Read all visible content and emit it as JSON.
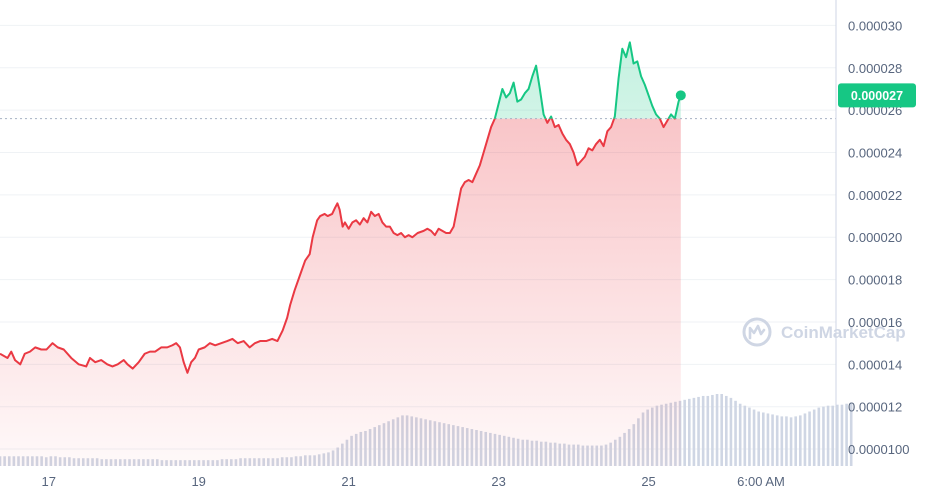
{
  "watermark": {
    "text": "CoinMarketCap",
    "icon": "coinmarketcap-logo-icon"
  },
  "current_price_label": "0.000027",
  "colors": {
    "up": "#16c784",
    "down": "#ea3943",
    "grid": "#eff2f5",
    "axis": "#cfd6e4",
    "text": "#58667e",
    "volume": "#cfd6e4"
  },
  "chart_data": {
    "type": "area",
    "title": "",
    "xlabel": "",
    "ylabel": "",
    "y_axis_position": "right",
    "ylim": [
      9.2e-06,
      3.12e-05
    ],
    "y_ticks": [
      "0.000030",
      "0.000028",
      "0.000026",
      "0.000024",
      "0.000022",
      "0.000020",
      "0.000018",
      "0.000016",
      "0.000014",
      "0.000012",
      "0.0000100"
    ],
    "y_tick_values": [
      3e-05,
      2.8e-05,
      2.6e-05,
      2.4e-05,
      2.2e-05,
      2e-05,
      1.8e-05,
      1.6e-05,
      1.4e-05,
      1.2e-05,
      1e-05
    ],
    "x_ticks": [
      "17",
      "19",
      "21",
      "23",
      "25",
      "6:00 AM"
    ],
    "x_tick_values": [
      17,
      19,
      21,
      23,
      25,
      26.5
    ],
    "x_range": [
      16.35,
      27.5
    ],
    "baseline_value": 2.56e-05,
    "grid": true,
    "series": [
      {
        "values": [
          [
            16.35,
            1.45e-05
          ],
          [
            16.45,
            1.43e-05
          ],
          [
            16.5,
            1.46e-05
          ],
          [
            16.55,
            1.42e-05
          ],
          [
            16.62,
            1.4e-05
          ],
          [
            16.68,
            1.45e-05
          ],
          [
            16.75,
            1.46e-05
          ],
          [
            16.82,
            1.48e-05
          ],
          [
            16.9,
            1.47e-05
          ],
          [
            16.97,
            1.47e-05
          ],
          [
            17.05,
            1.5e-05
          ],
          [
            17.12,
            1.48e-05
          ],
          [
            17.2,
            1.47e-05
          ],
          [
            17.3,
            1.43e-05
          ],
          [
            17.4,
            1.4e-05
          ],
          [
            17.5,
            1.39e-05
          ],
          [
            17.55,
            1.43e-05
          ],
          [
            17.62,
            1.41e-05
          ],
          [
            17.7,
            1.42e-05
          ],
          [
            17.78,
            1.4e-05
          ],
          [
            17.85,
            1.39e-05
          ],
          [
            17.92,
            1.4e-05
          ],
          [
            18.0,
            1.42e-05
          ],
          [
            18.05,
            1.4e-05
          ],
          [
            18.12,
            1.38e-05
          ],
          [
            18.2,
            1.41e-05
          ],
          [
            18.28,
            1.45e-05
          ],
          [
            18.35,
            1.46e-05
          ],
          [
            18.42,
            1.46e-05
          ],
          [
            18.5,
            1.48e-05
          ],
          [
            18.58,
            1.48e-05
          ],
          [
            18.65,
            1.49e-05
          ],
          [
            18.7,
            1.5e-05
          ],
          [
            18.75,
            1.48e-05
          ],
          [
            18.8,
            1.41e-05
          ],
          [
            18.85,
            1.36e-05
          ],
          [
            18.9,
            1.41e-05
          ],
          [
            18.95,
            1.43e-05
          ],
          [
            19.0,
            1.47e-05
          ],
          [
            19.08,
            1.48e-05
          ],
          [
            19.15,
            1.5e-05
          ],
          [
            19.22,
            1.49e-05
          ],
          [
            19.3,
            1.5e-05
          ],
          [
            19.38,
            1.51e-05
          ],
          [
            19.45,
            1.52e-05
          ],
          [
            19.52,
            1.5e-05
          ],
          [
            19.6,
            1.51e-05
          ],
          [
            19.68,
            1.48e-05
          ],
          [
            19.75,
            1.5e-05
          ],
          [
            19.82,
            1.51e-05
          ],
          [
            19.9,
            1.51e-05
          ],
          [
            19.98,
            1.52e-05
          ],
          [
            20.05,
            1.51e-05
          ],
          [
            20.12,
            1.56e-05
          ],
          [
            20.18,
            1.62e-05
          ],
          [
            20.22,
            1.68e-05
          ],
          [
            20.28,
            1.75e-05
          ],
          [
            20.35,
            1.82e-05
          ],
          [
            20.42,
            1.89e-05
          ],
          [
            20.48,
            1.92e-05
          ],
          [
            20.52,
            2e-05
          ],
          [
            20.58,
            2.08e-05
          ],
          [
            20.62,
            2.1e-05
          ],
          [
            20.68,
            2.11e-05
          ],
          [
            20.72,
            2.1e-05
          ],
          [
            20.78,
            2.11e-05
          ],
          [
            20.82,
            2.14e-05
          ],
          [
            20.85,
            2.16e-05
          ],
          [
            20.88,
            2.13e-05
          ],
          [
            20.92,
            2.05e-05
          ],
          [
            20.95,
            2.07e-05
          ],
          [
            21.0,
            2.04e-05
          ],
          [
            21.05,
            2.07e-05
          ],
          [
            21.1,
            2.08e-05
          ],
          [
            21.15,
            2.06e-05
          ],
          [
            21.2,
            2.09e-05
          ],
          [
            21.25,
            2.07e-05
          ],
          [
            21.3,
            2.12e-05
          ],
          [
            21.35,
            2.1e-05
          ],
          [
            21.4,
            2.11e-05
          ],
          [
            21.45,
            2.07e-05
          ],
          [
            21.5,
            2.05e-05
          ],
          [
            21.55,
            2.05e-05
          ],
          [
            21.6,
            2.02e-05
          ],
          [
            21.65,
            2.01e-05
          ],
          [
            21.7,
            2.02e-05
          ],
          [
            21.75,
            2e-05
          ],
          [
            21.8,
            2.01e-05
          ],
          [
            21.85,
            2e-05
          ],
          [
            21.92,
            2.02e-05
          ],
          [
            22.0,
            2.03e-05
          ],
          [
            22.05,
            2.04e-05
          ],
          [
            22.1,
            2.03e-05
          ],
          [
            22.15,
            2.01e-05
          ],
          [
            22.2,
            2.04e-05
          ],
          [
            22.25,
            2.03e-05
          ],
          [
            22.3,
            2.02e-05
          ],
          [
            22.35,
            2.02e-05
          ],
          [
            22.4,
            2.05e-05
          ],
          [
            22.45,
            2.14e-05
          ],
          [
            22.5,
            2.23e-05
          ],
          [
            22.55,
            2.26e-05
          ],
          [
            22.6,
            2.27e-05
          ],
          [
            22.65,
            2.26e-05
          ],
          [
            22.7,
            2.3e-05
          ],
          [
            22.75,
            2.34e-05
          ],
          [
            22.8,
            2.4e-05
          ],
          [
            22.85,
            2.46e-05
          ],
          [
            22.9,
            2.52e-05
          ],
          [
            22.95,
            2.56e-05
          ],
          [
            23.0,
            2.63e-05
          ],
          [
            23.05,
            2.7e-05
          ],
          [
            23.1,
            2.66e-05
          ],
          [
            23.15,
            2.68e-05
          ],
          [
            23.2,
            2.73e-05
          ],
          [
            23.25,
            2.64e-05
          ],
          [
            23.3,
            2.65e-05
          ],
          [
            23.35,
            2.68e-05
          ],
          [
            23.4,
            2.7e-05
          ],
          [
            23.45,
            2.76e-05
          ],
          [
            23.5,
            2.81e-05
          ],
          [
            23.55,
            2.7e-05
          ],
          [
            23.6,
            2.58e-05
          ],
          [
            23.65,
            2.54e-05
          ],
          [
            23.7,
            2.57e-05
          ],
          [
            23.75,
            2.52e-05
          ],
          [
            23.8,
            2.53e-05
          ],
          [
            23.85,
            2.49e-05
          ],
          [
            23.9,
            2.46e-05
          ],
          [
            23.95,
            2.44e-05
          ],
          [
            24.0,
            2.4e-05
          ],
          [
            24.05,
            2.34e-05
          ],
          [
            24.1,
            2.36e-05
          ],
          [
            24.15,
            2.38e-05
          ],
          [
            24.2,
            2.42e-05
          ],
          [
            24.25,
            2.41e-05
          ],
          [
            24.3,
            2.44e-05
          ],
          [
            24.35,
            2.46e-05
          ],
          [
            24.4,
            2.43e-05
          ],
          [
            24.45,
            2.5e-05
          ],
          [
            24.5,
            2.52e-05
          ],
          [
            24.55,
            2.57e-05
          ],
          [
            24.6,
            2.75e-05
          ],
          [
            24.65,
            2.89e-05
          ],
          [
            24.7,
            2.85e-05
          ],
          [
            24.75,
            2.92e-05
          ],
          [
            24.8,
            2.82e-05
          ],
          [
            24.85,
            2.83e-05
          ],
          [
            24.9,
            2.76e-05
          ],
          [
            24.95,
            2.72e-05
          ],
          [
            25.0,
            2.67e-05
          ],
          [
            25.05,
            2.62e-05
          ],
          [
            25.1,
            2.58e-05
          ],
          [
            25.15,
            2.56e-05
          ],
          [
            25.2,
            2.52e-05
          ],
          [
            25.25,
            2.55e-05
          ],
          [
            25.3,
            2.58e-05
          ],
          [
            25.35,
            2.56e-05
          ],
          [
            25.4,
            2.64e-05
          ],
          [
            25.43,
            2.67e-05
          ]
        ]
      }
    ],
    "volume": {
      "type": "bar",
      "x_start": 16.35,
      "x_step": 0.0617,
      "values": [
        10,
        10,
        10,
        10,
        10,
        10,
        10,
        10,
        10,
        10,
        9,
        10,
        10,
        9,
        9,
        9,
        8,
        8,
        8,
        8,
        8,
        8,
        7,
        7,
        7,
        7,
        7,
        7,
        7,
        7,
        7,
        7,
        7,
        7,
        7,
        6,
        6,
        6,
        6,
        6,
        6,
        6,
        6,
        6,
        6,
        6,
        6,
        6,
        7,
        7,
        7,
        7,
        8,
        8,
        8,
        8,
        8,
        8,
        8,
        8,
        8,
        9,
        9,
        9,
        10,
        10,
        11,
        11,
        11,
        12,
        13,
        14,
        16,
        19,
        23,
        27,
        31,
        33,
        35,
        36,
        38,
        40,
        42,
        44,
        46,
        48,
        50,
        52,
        52,
        51,
        50,
        49,
        48,
        47,
        46,
        45,
        44,
        43,
        42,
        41,
        40,
        39,
        38,
        37,
        36,
        35,
        34,
        33,
        32,
        31,
        30,
        29,
        28,
        27,
        27,
        26,
        26,
        25,
        25,
        24,
        24,
        23,
        23,
        22,
        22,
        22,
        21,
        21,
        21,
        21,
        21,
        22,
        24,
        27,
        30,
        34,
        38,
        43,
        49,
        55,
        58,
        60,
        62,
        63,
        64,
        65,
        66,
        67,
        68,
        69,
        70,
        71,
        72,
        72,
        73,
        74,
        74,
        72,
        70,
        67,
        64,
        62,
        60,
        58,
        56,
        55,
        54,
        53,
        52,
        51,
        51,
        50,
        51,
        52,
        54,
        56,
        58,
        60,
        61,
        62,
        62,
        63,
        63,
        64,
        65
      ]
    }
  }
}
